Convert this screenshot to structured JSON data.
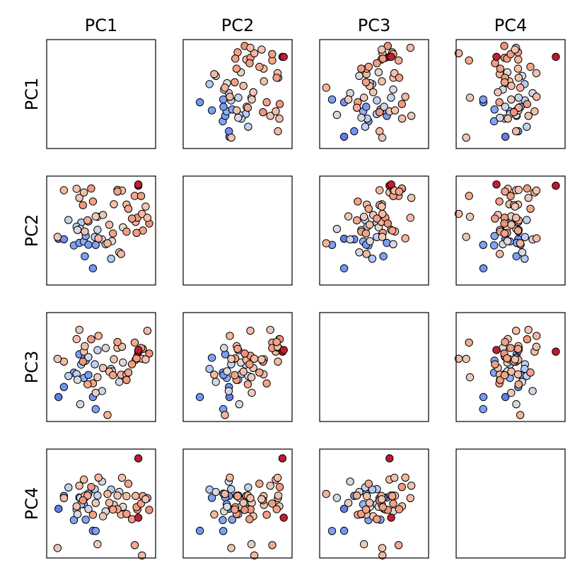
{
  "chart_data": {
    "type": "scatter",
    "title": "",
    "column_labels": [
      "PC1",
      "PC2",
      "PC3",
      "PC4"
    ],
    "row_labels": [
      "PC1",
      "PC2",
      "PC3",
      "PC4"
    ],
    "grid": false,
    "ticks": "none",
    "diagonal": "empty",
    "colormap": "coolwarm",
    "colormap_stops": [
      "#3b4cc0",
      "#6f92f3",
      "#aac7fd",
      "#dddcdc",
      "#f7b89c",
      "#e7745b",
      "#b40426"
    ],
    "marker": {
      "fill": "by-color-value",
      "edgecolor": "#000000"
    },
    "xlim": [
      -3,
      3
    ],
    "ylim": [
      -3,
      3
    ],
    "clim": [
      0,
      1
    ],
    "points": [
      {
        "pc": [
          -2.35,
          -0.45,
          -1.65,
          -0.29
        ],
        "c": 0.12
      },
      {
        "pc": [
          -2.05,
          -0.48,
          -1.1,
          0.42
        ],
        "c": 0.17
      },
      {
        "pc": [
          -1.5,
          -0.82,
          -0.31,
          -0.91
        ],
        "c": 0.22
      },
      {
        "pc": [
          -1.2,
          -0.68,
          0.7,
          0.33
        ],
        "c": 0.2
      },
      {
        "pc": [
          -0.95,
          -0.6,
          -0.6,
          -0.04
        ],
        "c": 0.26
      },
      {
        "pc": [
          -0.9,
          -1.42,
          0.51,
          0.32
        ],
        "c": 0.21
      },
      {
        "pc": [
          -1.1,
          0.44,
          0.14,
          -0.03
        ],
        "c": 0.37
      },
      {
        "pc": [
          -0.85,
          -0.3,
          0.35,
          -0.89
        ],
        "c": 0.23
      },
      {
        "pc": [
          -1.35,
          0.21,
          -0.38,
          -0.32
        ],
        "c": 0.4
      },
      {
        "pc": [
          -0.7,
          -0.78,
          -0.44,
          0.55
        ],
        "c": 0.19
      },
      {
        "pc": [
          -0.45,
          -2.08,
          -1.65,
          -1.5
        ],
        "c": 0.18
      },
      {
        "pc": [
          -1.8,
          0.58,
          -0.49,
          0.89
        ],
        "c": 0.41
      },
      {
        "pc": [
          -0.3,
          -0.79,
          -2.32,
          -1.51
        ],
        "c": 0.21
      },
      {
        "pc": [
          -0.35,
          -0.36,
          0.15,
          0.79
        ],
        "c": 0.4
      },
      {
        "pc": [
          -1.15,
          0.09,
          -2.05,
          0.31
        ],
        "c": 0.47
      },
      {
        "pc": [
          -0.2,
          0.04,
          0.93,
          0.44
        ],
        "c": 0.43
      },
      {
        "pc": [
          0.05,
          -0.49,
          -1.32,
          1.21
        ],
        "c": 0.45
      },
      {
        "pc": [
          -0.7,
          0.5,
          0.55,
          -0.3
        ],
        "c": 0.45
      },
      {
        "pc": [
          -1.3,
          0.03,
          -0.7,
          -0.59
        ],
        "c": 0.48
      },
      {
        "pc": [
          0.25,
          -0.75,
          1.05,
          -0.43
        ],
        "c": 0.48
      },
      {
        "pc": [
          0.55,
          -1.55,
          -0.1,
          0.77
        ],
        "c": 0.36
      },
      {
        "pc": [
          0.6,
          -0.58,
          -0.23,
          -0.17
        ],
        "c": 0.5
      },
      {
        "pc": [
          1.0,
          -1.2,
          -0.82,
          0.64
        ],
        "c": 0.47
      },
      {
        "pc": [
          1.2,
          0.18,
          0.25,
          -0.18
        ],
        "c": 0.53
      },
      {
        "pc": [
          -0.2,
          0.76,
          -0.56,
          -2.24
        ],
        "c": 0.58
      },
      {
        "pc": [
          -1.2,
          1.8,
          2.05,
          0.98
        ],
        "c": 0.6
      },
      {
        "pc": [
          -2.05,
          2.22,
          0.3,
          0.3
        ],
        "c": 0.66
      },
      {
        "pc": [
          -1.35,
          2.3,
          1.54,
          -0.15
        ],
        "c": 0.62
      },
      {
        "pc": [
          -0.95,
          2.1,
          0.85,
          1.32
        ],
        "c": 0.64
      },
      {
        "pc": [
          -0.3,
          0.78,
          -1.42,
          0.03
        ],
        "c": 0.58
      },
      {
        "pc": [
          0.1,
          0.86,
          -0.05,
          -0.7
        ],
        "c": 0.6
      },
      {
        "pc": [
          0.7,
          1.45,
          0.43,
          -0.07
        ],
        "c": 0.62
      },
      {
        "pc": [
          0.9,
          2.24,
          1.06,
          0.44
        ],
        "c": 0.62
      },
      {
        "pc": [
          -0.15,
          -0.43,
          1.72,
          1.43
        ],
        "c": 0.67
      },
      {
        "pc": [
          0.45,
          0.32,
          -0.25,
          0.04
        ],
        "c": 0.64
      },
      {
        "pc": [
          1.1,
          -1.29,
          -0.42,
          -0.6
        ],
        "c": 0.66
      },
      {
        "pc": [
          -0.9,
          -0.05,
          1.15,
          0.43
        ],
        "c": 0.62
      },
      {
        "pc": [
          1.9,
          0.48,
          0.4,
          0.42
        ],
        "c": 0.67
      },
      {
        "pc": [
          -0.45,
          1.6,
          -0.9,
          -0.62
        ],
        "c": 0.72
      },
      {
        "pc": [
          2.0,
          0.71,
          0.62,
          -0.33
        ],
        "c": 0.74
      },
      {
        "pc": [
          2.65,
          0.39,
          0.75,
          -0.35
        ],
        "c": 0.76
      },
      {
        "pc": [
          1.4,
          1.43,
          -0.4,
          0.41
        ],
        "c": 0.64
      },
      {
        "pc": [
          2.3,
          0.0,
          1.0,
          0.41
        ],
        "c": 0.72
      },
      {
        "pc": [
          0.35,
          -0.7,
          -2.64,
          0.53
        ],
        "c": 0.68
      },
      {
        "pc": [
          1.85,
          1.91,
          1.35,
          -2.29
        ],
        "c": 0.7
      },
      {
        "pc": [
          2.25,
          0.92,
          0.46,
          -2.86
        ],
        "c": 0.66
      },
      {
        "pc": [
          1.95,
          -0.13,
          0.48,
          -0.2
        ],
        "c": 0.73
      },
      {
        "pc": [
          -0.75,
          0.56,
          -0.95,
          0.44
        ],
        "c": 0.7
      },
      {
        "pc": [
          2.2,
          1.9,
          1.05,
          0.0
        ],
        "c": 0.73
      },
      {
        "pc": [
          1.15,
          2.2,
          1.12,
          1.42
        ],
        "c": 0.63
      },
      {
        "pc": [
          -0.55,
          2.32,
          1.53,
          0.91
        ],
        "c": 0.74
      },
      {
        "pc": [
          1.5,
          1.2,
          -0.3,
          1.09
        ],
        "c": 0.71
      },
      {
        "pc": [
          0.9,
          2.15,
          1.38,
          -0.31
        ],
        "c": 0.72
      },
      {
        "pc": [
          1.7,
          0.66,
          0.15,
          -0.86
        ],
        "c": 0.73
      },
      {
        "pc": [
          -2.4,
          -0.35,
          0.45,
          -2.45
        ],
        "c": 0.6
      },
      {
        "pc": [
          1.4,
          -0.06,
          -0.71,
          -0.57
        ],
        "c": 0.73
      },
      {
        "pc": [
          -1.0,
          1.4,
          0.3,
          0.18
        ],
        "c": 0.75
      },
      {
        "pc": [
          2.55,
          0.7,
          2.0,
          0.3
        ],
        "c": 0.64
      },
      {
        "pc": [
          2.45,
          1.32,
          0.42,
          0.24
        ],
        "c": 0.6
      },
      {
        "pc": [
          0.65,
          -0.16,
          -0.45,
          -0.33
        ],
        "c": 0.72
      },
      {
        "pc": [
          2.05,
          2.47,
          0.85,
          2.49
        ],
        "c": 0.97
      },
      {
        "pc": [
          2.05,
          2.54,
          0.94,
          -0.78
        ],
        "c": 0.96
      }
    ]
  }
}
